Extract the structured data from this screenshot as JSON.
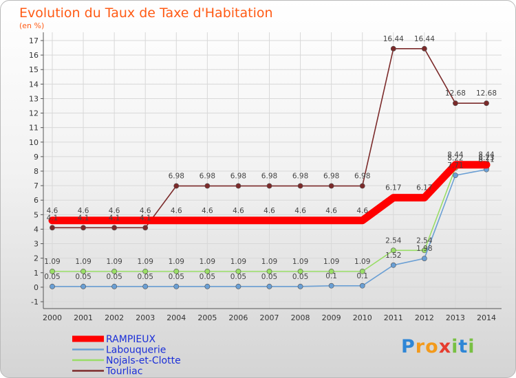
{
  "chart_data": {
    "type": "line",
    "title": "Evolution du Taux de Taxe d'Habitation",
    "subtitle": "(en %)",
    "x": [
      "2000",
      "2001",
      "2002",
      "2003",
      "2004",
      "2005",
      "2006",
      "2007",
      "2008",
      "2009",
      "2010",
      "2011",
      "2012",
      "2013",
      "2014"
    ],
    "ylim": [
      -1,
      17
    ],
    "yticks": [
      -1,
      0,
      1,
      2,
      3,
      4,
      5,
      6,
      7,
      8,
      9,
      10,
      11,
      12,
      13,
      14,
      15,
      16,
      17
    ],
    "grid": true,
    "legend_position": "bottom-left",
    "series": [
      {
        "name": "RAMPIEUX",
        "color": "#ff0000",
        "values": [
          4.6,
          4.6,
          4.6,
          4.6,
          4.6,
          4.6,
          4.6,
          4.6,
          4.6,
          4.6,
          4.6,
          6.17,
          6.17,
          8.44,
          8.44
        ],
        "labels": [
          "4.6",
          "4.6",
          "4.6",
          "4.6",
          "4.6",
          "4.6",
          "4.6",
          "4.6",
          "4.6",
          "4.6",
          "4.6",
          "6.17",
          "6.17",
          "8.44",
          "8.44"
        ]
      },
      {
        "name": "Labouquerie",
        "color": "#6a9fd4",
        "values": [
          0.05,
          0.05,
          0.05,
          0.05,
          0.05,
          0.05,
          0.05,
          0.05,
          0.05,
          0.1,
          0.1,
          1.52,
          1.98,
          7.71,
          8.11
        ],
        "labels": [
          "0.05",
          "0.05",
          "0.05",
          "0.05",
          "0.05",
          "0.05",
          "0.05",
          "0.05",
          "0.05",
          "0.1",
          "0.1",
          "1.52",
          "1.98",
          "7.71",
          "8.11"
        ]
      },
      {
        "name": "Nojals-et-Clotte",
        "color": "#99dd66",
        "values": [
          1.09,
          1.09,
          1.09,
          1.09,
          1.09,
          1.09,
          1.09,
          1.09,
          1.09,
          1.09,
          1.09,
          2.54,
          2.54,
          8.22,
          8.23
        ],
        "labels": [
          "1.09",
          "1.09",
          "1.09",
          "1.09",
          "1.09",
          "1.09",
          "1.09",
          "1.09",
          "1.09",
          "1.09",
          "1.09",
          "2.54",
          "2.54",
          "8.22",
          "8.23"
        ]
      },
      {
        "name": "Tourliac",
        "color": "#7b2a2a",
        "values": [
          4.1,
          4.1,
          4.1,
          4.1,
          6.98,
          6.98,
          6.98,
          6.98,
          6.98,
          6.98,
          6.98,
          16.44,
          16.44,
          12.68,
          12.68
        ],
        "labels": [
          "4.1",
          "4.1",
          "4.1",
          "4.1",
          "6.98",
          "6.98",
          "6.98",
          "6.98",
          "6.98",
          "6.98",
          "6.98",
          "16.44",
          "16.44",
          "12.68",
          "12.68"
        ]
      }
    ]
  },
  "logo": {
    "letters": [
      "P",
      "r",
      "o",
      "x",
      "i",
      "t",
      "i"
    ],
    "colors": [
      "#2e86d6",
      "#f39a1b",
      "#f39a1b",
      "#e63c2e",
      "#78c043",
      "#2e86d6",
      "#78c043"
    ]
  }
}
